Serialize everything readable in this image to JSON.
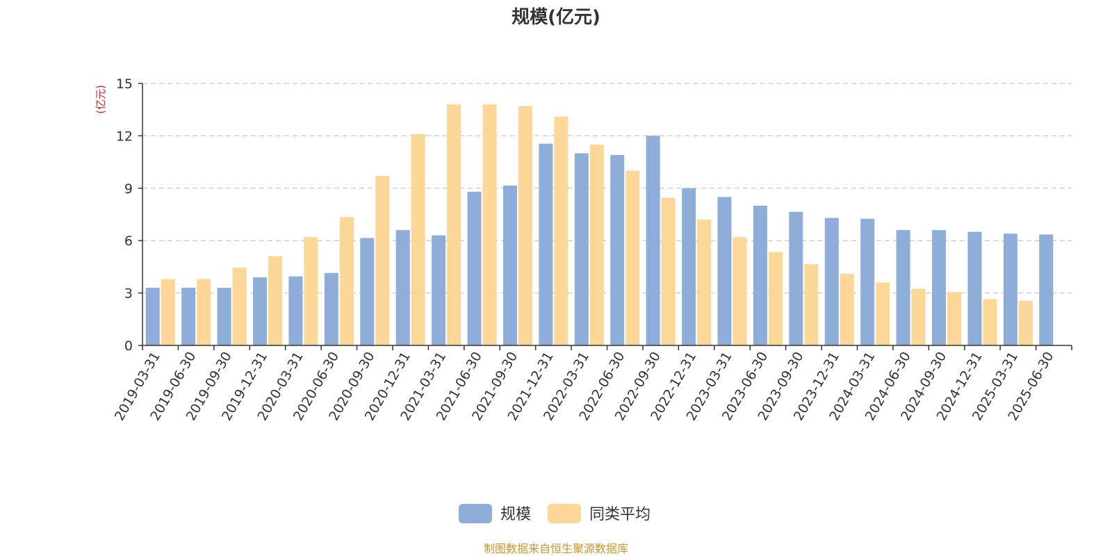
{
  "chart_data": {
    "type": "bar",
    "title": "规模(亿元)",
    "ylabel": "(亿元)",
    "xlabel": "",
    "ylim": [
      0,
      15
    ],
    "yticks": [
      0,
      3,
      6,
      9,
      12,
      15
    ],
    "grid": true,
    "legend_position": "bottom-center",
    "categories": [
      "2019-03-31",
      "2019-06-30",
      "2019-09-30",
      "2019-12-31",
      "2020-03-31",
      "2020-06-30",
      "2020-09-30",
      "2020-12-31",
      "2021-03-31",
      "2021-06-30",
      "2021-09-30",
      "2021-12-31",
      "2022-03-31",
      "2022-06-30",
      "2022-09-30",
      "2022-12-31",
      "2023-03-31",
      "2023-06-30",
      "2023-09-30",
      "2023-12-31",
      "2024-03-31",
      "2024-06-30",
      "2024-09-30",
      "2024-12-31",
      "2025-03-31",
      "2025-06-30"
    ],
    "series": [
      {
        "name": "规模",
        "color": "#8eadd9",
        "values": [
          3.3,
          3.3,
          3.3,
          3.9,
          3.95,
          4.15,
          6.15,
          6.6,
          6.3,
          8.8,
          9.15,
          11.55,
          11.0,
          10.9,
          12.0,
          9.0,
          8.5,
          8.0,
          7.65,
          7.3,
          7.25,
          6.6,
          6.6,
          6.5,
          6.4,
          6.35
        ]
      },
      {
        "name": "同类平均",
        "color": "#fdd797",
        "values": [
          3.8,
          3.8,
          4.45,
          5.1,
          6.2,
          7.35,
          9.7,
          12.1,
          13.8,
          13.8,
          13.7,
          13.1,
          11.5,
          10.0,
          8.45,
          7.2,
          6.2,
          5.35,
          4.65,
          4.1,
          3.6,
          3.25,
          3.05,
          2.65,
          2.55,
          null
        ]
      }
    ]
  },
  "footer": {
    "source": "制图数据来自恒生聚源数据库"
  }
}
